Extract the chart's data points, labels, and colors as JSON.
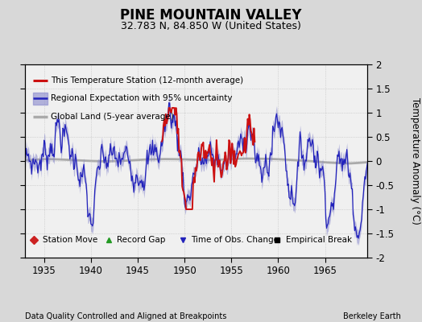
{
  "title": "PINE MOUNTAIN VALLEY",
  "subtitle": "32.783 N, 84.850 W (United States)",
  "xlabel_left": "Data Quality Controlled and Aligned at Breakpoints",
  "xlabel_right": "Berkeley Earth",
  "ylabel": "Temperature Anomaly (°C)",
  "xlim": [
    1933.0,
    1969.5
  ],
  "ylim": [
    -2.0,
    2.0
  ],
  "xticks": [
    1935,
    1940,
    1945,
    1950,
    1955,
    1960,
    1965
  ],
  "yticks": [
    -2,
    -1.5,
    -1,
    -0.5,
    0,
    0.5,
    1,
    1.5,
    2
  ],
  "ytick_labels": [
    "-2",
    "-1.5",
    "-1",
    "-0.5",
    "0",
    "0.5",
    "1",
    "1.5",
    "2"
  ],
  "regional_color": "#2222bb",
  "regional_uncertainty_color": "#8888cc",
  "station_color": "#cc1111",
  "global_color": "#aaaaaa",
  "background_color": "#d8d8d8",
  "plot_bg_color": "#f0f0f0",
  "title_fontsize": 12,
  "subtitle_fontsize": 9,
  "station_start_year": 1947.5,
  "station_end_year": 1957.5
}
